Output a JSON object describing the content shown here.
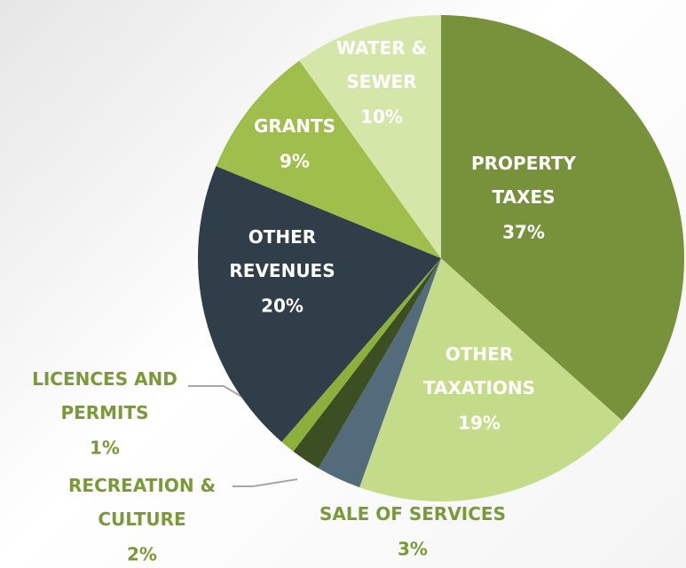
{
  "chart_data": {
    "type": "pie",
    "categories": [
      "PROPERTY TAXES",
      "OTHER TAXATIONS",
      "SALE OF SERVICES",
      "RECREATION & CULTURE",
      "LICENCES AND PERMITS",
      "OTHER REVENUES",
      "GRANTS",
      "WATER & SEWER"
    ],
    "values": [
      37,
      19,
      3,
      2,
      1,
      20,
      9,
      10
    ],
    "value_labels": [
      "37%",
      "19%",
      "3%",
      "2%",
      "1%",
      "20%",
      "9%",
      "10%"
    ],
    "colors": [
      "#77923a",
      "#c4db8a",
      "#536b7b",
      "#3c4f22",
      "#8db03c",
      "#2f3e49",
      "#9fbe4b",
      "#d5e6a9"
    ]
  }
}
